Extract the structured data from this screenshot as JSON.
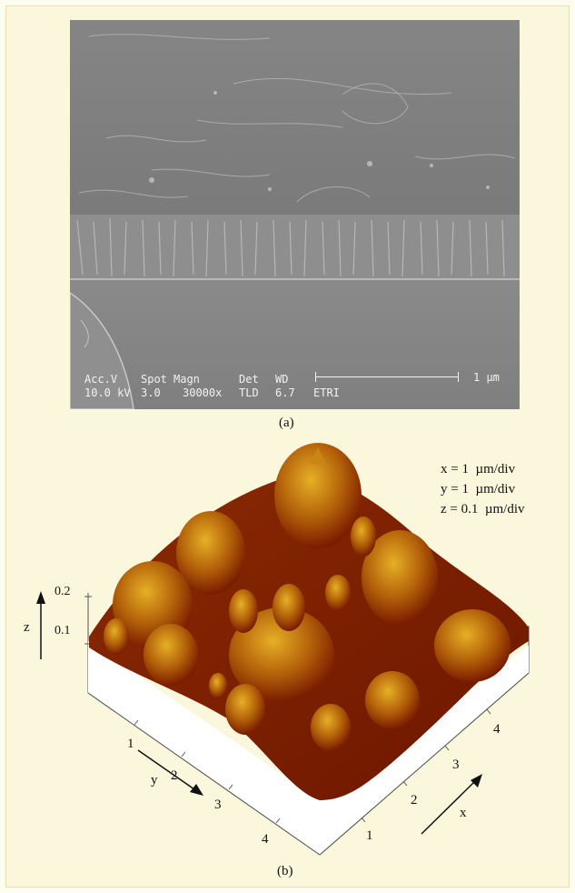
{
  "sem_panel": {
    "caption": "(a)",
    "info": {
      "col_accv": "Acc.V",
      "col_spot": "Spot",
      "col_magn": "Magn",
      "col_det": "Det",
      "col_wd": "WD",
      "val_accv": "10.0 kV",
      "val_spot": "3.0",
      "val_magn": "30000x",
      "val_det": "TLD",
      "val_wd": "6.7",
      "lab": "ETRI",
      "scale_label": "1 µm"
    }
  },
  "afm_panel": {
    "caption": "(b)",
    "legend": {
      "x": "x = 1  µm/div",
      "y": "y = 1  µm/div",
      "z": "z = 0.1  µm/div"
    },
    "z_axis": {
      "label": "z",
      "ticks": [
        "0.2",
        "0.1"
      ]
    },
    "y_axis": {
      "label": "y",
      "ticks": [
        "1",
        "2",
        "3",
        "4"
      ]
    },
    "x_axis": {
      "label": "x",
      "ticks": [
        "1",
        "2",
        "3",
        "4"
      ]
    },
    "colors": {
      "surface_dark": "#7a1c00",
      "surface_mid": "#b05a06",
      "surface_light": "#e0a820"
    }
  }
}
